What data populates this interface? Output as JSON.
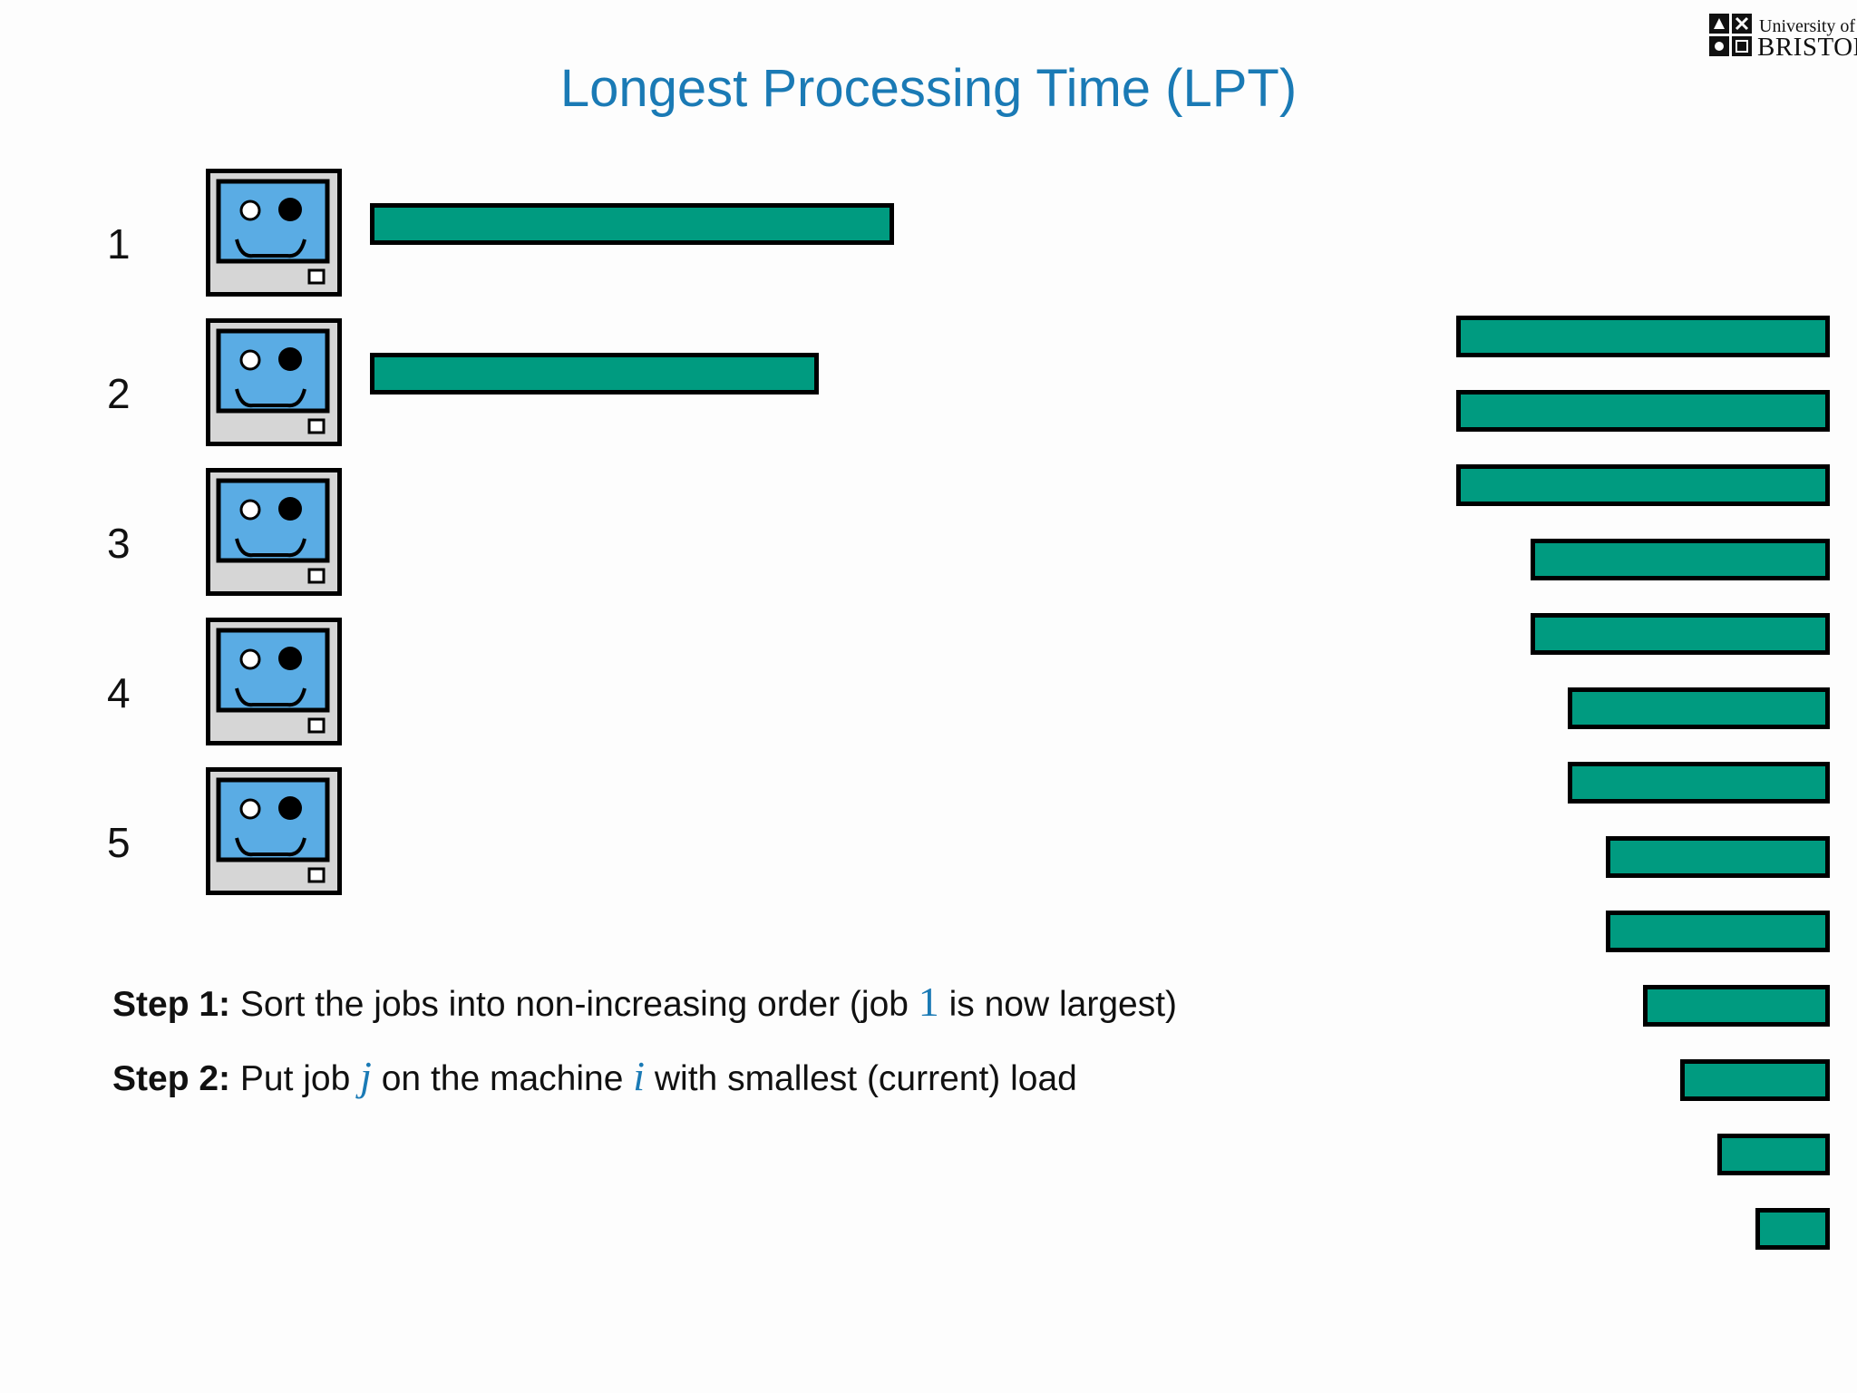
{
  "colors": {
    "accent": "#1a7ab5",
    "job": "#009b80",
    "screen": "#5aace4",
    "case": "#d6d6d6"
  },
  "title": "Longest Processing Time (LPT)",
  "logo": {
    "line1": "University of",
    "line2": "BRISTOL"
  },
  "machines": [
    {
      "label": "1",
      "icon": "computer-smiley-icon",
      "assigned_job_length": 7.0
    },
    {
      "label": "2",
      "icon": "computer-smiley-icon",
      "assigned_job_length": 6.0
    },
    {
      "label": "3",
      "icon": "computer-smiley-icon",
      "assigned_job_length": null
    },
    {
      "label": "4",
      "icon": "computer-smiley-icon",
      "assigned_job_length": null
    },
    {
      "label": "5",
      "icon": "computer-smiley-icon",
      "assigned_job_length": null
    }
  ],
  "job_queue_lengths": [
    5.0,
    5.0,
    5.0,
    4.0,
    4.0,
    3.5,
    3.5,
    3.0,
    3.0,
    2.5,
    2.0,
    1.5,
    1.0
  ],
  "steps": [
    {
      "label": "Step 1:",
      "before": " Sort the jobs into non-increasing order (job ",
      "var1": "1",
      "after": " is now largest)"
    },
    {
      "label": "Step 2:",
      "before": " Put job ",
      "var1": "j",
      "middle": " on the machine ",
      "var2": "i",
      "after": " with smallest (current) load"
    }
  ]
}
